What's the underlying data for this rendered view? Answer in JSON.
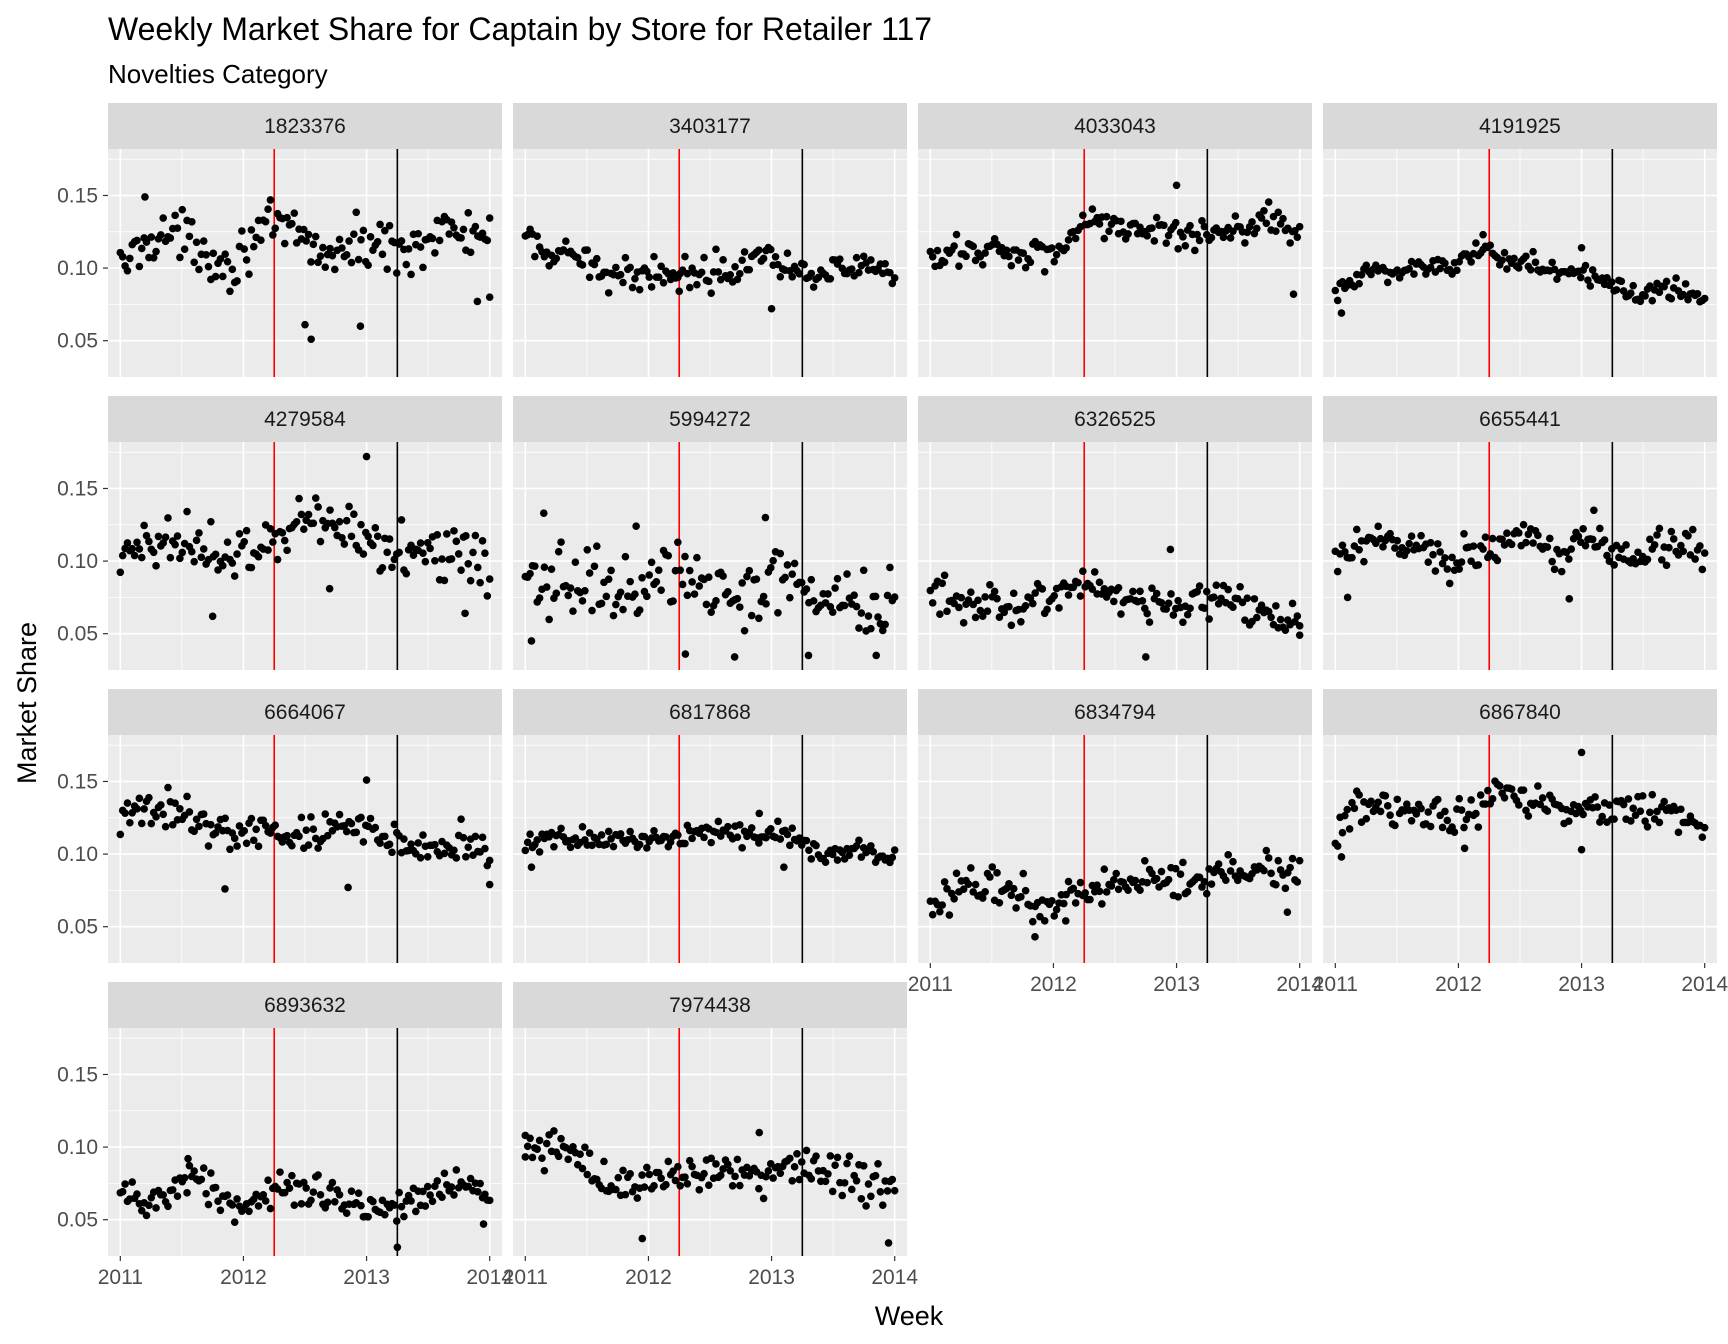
{
  "title": "Weekly Market Share for Captain by Store for Retailer 117",
  "subtitle": "Novelties Category",
  "x_axis_title": "Week",
  "y_axis_title": "Market Share",
  "colors": {
    "panel_background": "#EBEBEB",
    "grid": "#FFFFFF",
    "strip_background": "#D9D9D9",
    "point": "#000000",
    "red_line": "#FF0000",
    "black_line": "#000000"
  },
  "chart_data": {
    "type": "scatter",
    "facet_layout": "4 columns, 4 rows",
    "xlabel": "Week",
    "ylabel": "Market Share",
    "x_ticks": [
      "2011",
      "2012",
      "2013",
      "2014"
    ],
    "x_tick_values": [
      2011,
      2012,
      2013,
      2014
    ],
    "y_ticks": [
      "0.05",
      "0.10",
      "0.15"
    ],
    "y_tick_values": [
      0.05,
      0.1,
      0.15
    ],
    "xlim": [
      2010.9,
      2014.1
    ],
    "ylim": [
      0.025,
      0.182
    ],
    "grid": true,
    "vertical_lines": [
      {
        "x": 2012.25,
        "color": "red"
      },
      {
        "x": 2013.25,
        "color": "black"
      }
    ],
    "series_points_per_week": "weekly, 2011-01 to 2013-12 (approx. 156 points per store)",
    "stores": [
      {
        "name": "1823376",
        "trend": [
          [
            2011.0,
            0.1
          ],
          [
            2011.3,
            0.125
          ],
          [
            2011.6,
            0.118
          ],
          [
            2011.9,
            0.1
          ],
          [
            2012.1,
            0.125
          ],
          [
            2012.4,
            0.125
          ],
          [
            2012.7,
            0.108
          ],
          [
            2013.0,
            0.118
          ],
          [
            2013.3,
            0.112
          ],
          [
            2013.6,
            0.125
          ],
          [
            2014.0,
            0.122
          ]
        ],
        "noise": 0.012,
        "outliers": [
          [
            2012.5,
            0.061
          ],
          [
            2012.55,
            0.051
          ],
          [
            2012.95,
            0.06
          ],
          [
            2013.9,
            0.077
          ],
          [
            2014.0,
            0.08
          ],
          [
            2011.2,
            0.149
          ]
        ]
      },
      {
        "name": "3403177",
        "trend": [
          [
            2011.0,
            0.12
          ],
          [
            2011.2,
            0.108
          ],
          [
            2011.5,
            0.104
          ],
          [
            2011.8,
            0.093
          ],
          [
            2012.0,
            0.098
          ],
          [
            2012.3,
            0.097
          ],
          [
            2012.6,
            0.098
          ],
          [
            2012.9,
            0.112
          ],
          [
            2013.2,
            0.098
          ],
          [
            2013.5,
            0.1
          ],
          [
            2014.0,
            0.096
          ]
        ],
        "noise": 0.008,
        "outliers": [
          [
            2013.0,
            0.072
          ],
          [
            2012.25,
            0.084
          ]
        ]
      },
      {
        "name": "4033043",
        "trend": [
          [
            2011.0,
            0.103
          ],
          [
            2011.3,
            0.113
          ],
          [
            2011.6,
            0.112
          ],
          [
            2011.9,
            0.11
          ],
          [
            2012.1,
            0.115
          ],
          [
            2012.3,
            0.138
          ],
          [
            2012.6,
            0.125
          ],
          [
            2012.9,
            0.123
          ],
          [
            2013.2,
            0.124
          ],
          [
            2013.5,
            0.128
          ],
          [
            2013.8,
            0.136
          ],
          [
            2014.0,
            0.12
          ]
        ],
        "noise": 0.008,
        "outliers": [
          [
            2013.0,
            0.157
          ],
          [
            2013.95,
            0.082
          ]
        ]
      },
      {
        "name": "4191925",
        "trend": [
          [
            2011.0,
            0.082
          ],
          [
            2011.3,
            0.098
          ],
          [
            2011.6,
            0.1
          ],
          [
            2011.9,
            0.101
          ],
          [
            2012.2,
            0.113
          ],
          [
            2012.5,
            0.105
          ],
          [
            2012.8,
            0.097
          ],
          [
            2013.1,
            0.092
          ],
          [
            2013.4,
            0.084
          ],
          [
            2013.7,
            0.087
          ],
          [
            2014.0,
            0.081
          ]
        ],
        "noise": 0.006,
        "outliers": [
          [
            2011.05,
            0.069
          ],
          [
            2013.0,
            0.114
          ],
          [
            2012.2,
            0.123
          ]
        ]
      },
      {
        "name": "4279584",
        "trend": [
          [
            2011.0,
            0.095
          ],
          [
            2011.3,
            0.118
          ],
          [
            2011.6,
            0.115
          ],
          [
            2011.9,
            0.1
          ],
          [
            2012.2,
            0.108
          ],
          [
            2012.5,
            0.135
          ],
          [
            2012.8,
            0.125
          ],
          [
            2013.1,
            0.11
          ],
          [
            2013.4,
            0.112
          ],
          [
            2013.7,
            0.105
          ],
          [
            2014.0,
            0.092
          ]
        ],
        "noise": 0.014,
        "outliers": [
          [
            2013.0,
            0.172
          ],
          [
            2012.7,
            0.081
          ],
          [
            2011.75,
            0.062
          ],
          [
            2013.8,
            0.064
          ]
        ]
      },
      {
        "name": "5994272",
        "trend": [
          [
            2011.0,
            0.08
          ],
          [
            2011.3,
            0.088
          ],
          [
            2011.6,
            0.082
          ],
          [
            2011.9,
            0.082
          ],
          [
            2012.2,
            0.095
          ],
          [
            2012.5,
            0.08
          ],
          [
            2012.8,
            0.075
          ],
          [
            2013.1,
            0.09
          ],
          [
            2013.4,
            0.075
          ],
          [
            2013.7,
            0.065
          ],
          [
            2014.0,
            0.08
          ]
        ],
        "noise": 0.016,
        "outliers": [
          [
            2011.15,
            0.133
          ],
          [
            2012.95,
            0.13
          ],
          [
            2011.05,
            0.045
          ],
          [
            2012.3,
            0.036
          ],
          [
            2012.7,
            0.034
          ],
          [
            2013.3,
            0.035
          ],
          [
            2013.85,
            0.035
          ],
          [
            2011.9,
            0.124
          ]
        ]
      },
      {
        "name": "6326525",
        "trend": [
          [
            2011.0,
            0.08
          ],
          [
            2011.3,
            0.066
          ],
          [
            2011.6,
            0.068
          ],
          [
            2011.9,
            0.075
          ],
          [
            2012.2,
            0.085
          ],
          [
            2012.5,
            0.08
          ],
          [
            2012.8,
            0.072
          ],
          [
            2013.1,
            0.07
          ],
          [
            2013.4,
            0.075
          ],
          [
            2013.7,
            0.063
          ],
          [
            2014.0,
            0.058
          ]
        ],
        "noise": 0.009,
        "outliers": [
          [
            2012.95,
            0.108
          ],
          [
            2012.75,
            0.034
          ],
          [
            2014.0,
            0.049
          ]
        ]
      },
      {
        "name": "6655441",
        "trend": [
          [
            2011.0,
            0.1
          ],
          [
            2011.3,
            0.11
          ],
          [
            2011.6,
            0.112
          ],
          [
            2011.9,
            0.098
          ],
          [
            2012.2,
            0.108
          ],
          [
            2012.5,
            0.115
          ],
          [
            2012.8,
            0.11
          ],
          [
            2013.1,
            0.115
          ],
          [
            2013.4,
            0.103
          ],
          [
            2013.7,
            0.112
          ],
          [
            2014.0,
            0.108
          ]
        ],
        "noise": 0.009,
        "outliers": [
          [
            2011.1,
            0.075
          ],
          [
            2013.1,
            0.135
          ],
          [
            2012.9,
            0.074
          ]
        ]
      },
      {
        "name": "6664067",
        "trend": [
          [
            2011.0,
            0.125
          ],
          [
            2011.3,
            0.13
          ],
          [
            2011.6,
            0.125
          ],
          [
            2011.9,
            0.115
          ],
          [
            2012.2,
            0.115
          ],
          [
            2012.5,
            0.112
          ],
          [
            2012.8,
            0.12
          ],
          [
            2013.1,
            0.115
          ],
          [
            2013.4,
            0.105
          ],
          [
            2013.7,
            0.11
          ],
          [
            2014.0,
            0.098
          ]
        ],
        "noise": 0.009,
        "outliers": [
          [
            2011.85,
            0.076
          ],
          [
            2012.85,
            0.077
          ],
          [
            2013.0,
            0.151
          ],
          [
            2014.0,
            0.079
          ]
        ]
      },
      {
        "name": "6817868",
        "trend": [
          [
            2011.0,
            0.105
          ],
          [
            2011.3,
            0.112
          ],
          [
            2011.6,
            0.11
          ],
          [
            2011.9,
            0.11
          ],
          [
            2012.2,
            0.112
          ],
          [
            2012.5,
            0.115
          ],
          [
            2012.8,
            0.112
          ],
          [
            2013.1,
            0.115
          ],
          [
            2013.4,
            0.1
          ],
          [
            2013.7,
            0.102
          ],
          [
            2014.0,
            0.097
          ]
        ],
        "noise": 0.005,
        "outliers": [
          [
            2011.05,
            0.091
          ],
          [
            2012.9,
            0.128
          ],
          [
            2013.1,
            0.091
          ]
        ]
      },
      {
        "name": "6834794",
        "trend": [
          [
            2011.0,
            0.065
          ],
          [
            2011.3,
            0.082
          ],
          [
            2011.6,
            0.078
          ],
          [
            2011.9,
            0.062
          ],
          [
            2012.2,
            0.072
          ],
          [
            2012.5,
            0.078
          ],
          [
            2012.8,
            0.085
          ],
          [
            2013.1,
            0.078
          ],
          [
            2013.4,
            0.088
          ],
          [
            2013.7,
            0.092
          ],
          [
            2014.0,
            0.085
          ]
        ],
        "noise": 0.009,
        "outliers": [
          [
            2011.85,
            0.043
          ],
          [
            2012.1,
            0.054
          ],
          [
            2013.9,
            0.06
          ]
        ]
      },
      {
        "name": "6867840",
        "trend": [
          [
            2011.0,
            0.11
          ],
          [
            2011.2,
            0.135
          ],
          [
            2011.5,
            0.132
          ],
          [
            2011.8,
            0.125
          ],
          [
            2012.1,
            0.128
          ],
          [
            2012.4,
            0.145
          ],
          [
            2012.7,
            0.132
          ],
          [
            2013.0,
            0.13
          ],
          [
            2013.3,
            0.128
          ],
          [
            2013.6,
            0.13
          ],
          [
            2014.0,
            0.12
          ]
        ],
        "noise": 0.008,
        "outliers": [
          [
            2013.0,
            0.17
          ],
          [
            2011.05,
            0.098
          ],
          [
            2013.0,
            0.103
          ],
          [
            2012.05,
            0.104
          ]
        ]
      },
      {
        "name": "6893632",
        "trend": [
          [
            2011.0,
            0.065
          ],
          [
            2011.3,
            0.065
          ],
          [
            2011.6,
            0.08
          ],
          [
            2011.9,
            0.06
          ],
          [
            2012.2,
            0.065
          ],
          [
            2012.5,
            0.072
          ],
          [
            2012.8,
            0.065
          ],
          [
            2013.1,
            0.058
          ],
          [
            2013.4,
            0.062
          ],
          [
            2013.7,
            0.078
          ],
          [
            2014.0,
            0.065
          ]
        ],
        "noise": 0.008,
        "outliers": [
          [
            2013.25,
            0.031
          ],
          [
            2011.55,
            0.092
          ],
          [
            2013.95,
            0.047
          ]
        ]
      },
      {
        "name": "7974438",
        "trend": [
          [
            2011.0,
            0.095
          ],
          [
            2011.3,
            0.098
          ],
          [
            2011.6,
            0.08
          ],
          [
            2011.9,
            0.075
          ],
          [
            2012.2,
            0.082
          ],
          [
            2012.5,
            0.083
          ],
          [
            2012.8,
            0.08
          ],
          [
            2013.1,
            0.082
          ],
          [
            2013.4,
            0.085
          ],
          [
            2013.7,
            0.078
          ],
          [
            2014.0,
            0.072
          ]
        ],
        "noise": 0.01,
        "outliers": [
          [
            2011.95,
            0.037
          ],
          [
            2013.95,
            0.034
          ],
          [
            2012.9,
            0.11
          ],
          [
            2011.0,
            0.108
          ]
        ]
      }
    ]
  }
}
